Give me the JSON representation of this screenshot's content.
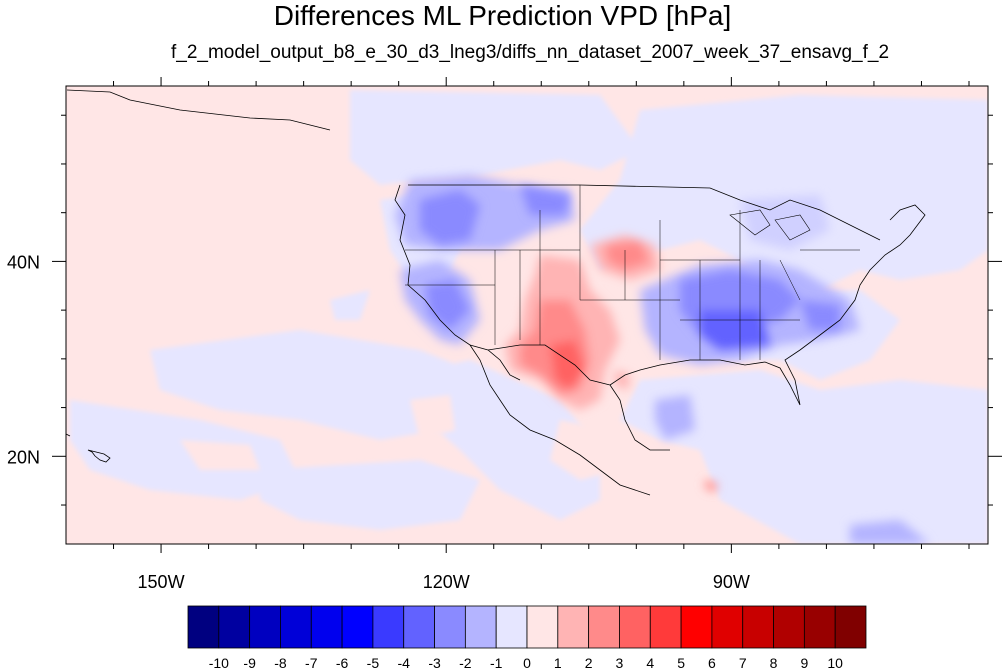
{
  "title": "Differences ML Prediction VPD [hPa]",
  "subtitle": "f_2_model_output_b8_e_30_d3_lneg3/diffs_nn_dataset_2007_week_37_ensavg_f_2",
  "map": {
    "projection": "cylindrical-equidistant",
    "lon_range": [
      -160,
      -63
    ],
    "lat_range": [
      11,
      58
    ],
    "background_value": 0,
    "x_ticks": [
      {
        "lon": -150,
        "label": "150W"
      },
      {
        "lon": -120,
        "label": "120W"
      },
      {
        "lon": -90,
        "label": "90W"
      }
    ],
    "y_ticks": [
      {
        "lat": 40,
        "label": "40N"
      },
      {
        "lat": 20,
        "label": "20N"
      }
    ]
  },
  "colorbar": {
    "orientation": "horizontal",
    "colors": [
      "#000080",
      "#0000a0",
      "#0000c0",
      "#0000d8",
      "#0000ee",
      "#0000ff",
      "#3a3aff",
      "#6262ff",
      "#8a8aff",
      "#b4b4ff",
      "#e6e6ff",
      "#ffe6e6",
      "#ffb4b4",
      "#ff8a8a",
      "#ff6262",
      "#ff3a3a",
      "#ff0000",
      "#e00000",
      "#c80000",
      "#b00000",
      "#980000",
      "#800000"
    ],
    "labels": [
      "-10",
      "-9",
      "-8",
      "-7",
      "-6",
      "-5",
      "-4",
      "-3",
      "-2",
      "-1",
      "0",
      "1",
      "2",
      "3",
      "4",
      "5",
      "6",
      "7",
      "8",
      "9",
      "10"
    ]
  }
}
